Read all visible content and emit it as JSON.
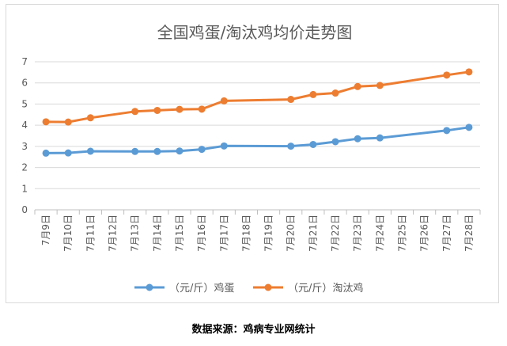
{
  "chart_data": {
    "type": "line",
    "title": "全国鸡蛋/淘汰鸡均价走势图",
    "categories": [
      "7月9日",
      "7月10日",
      "7月11日",
      "7月12日",
      "7月13日",
      "7月14日",
      "7月15日",
      "7月16日",
      "7月17日",
      "7月18日",
      "7月19日",
      "7月20日",
      "7月21日",
      "7月22日",
      "7月23日",
      "7月24日",
      "7月25日",
      "7月26日",
      "7月27日",
      "7月28日"
    ],
    "series": [
      {
        "name": "（元/斤）鸡蛋",
        "color": "#5B9BD5",
        "values": [
          2.68,
          2.69,
          2.77,
          null,
          2.76,
          2.76,
          2.78,
          2.86,
          3.02,
          null,
          null,
          3.01,
          3.09,
          3.22,
          3.36,
          3.4,
          null,
          null,
          3.75,
          3.9
        ]
      },
      {
        "name": "（元/斤）淘汰鸡",
        "color": "#ED7D31",
        "values": [
          4.16,
          4.15,
          4.35,
          null,
          4.65,
          4.7,
          4.75,
          4.76,
          5.15,
          null,
          null,
          5.22,
          5.45,
          5.52,
          5.83,
          5.88,
          null,
          null,
          6.37,
          6.52
        ]
      }
    ],
    "ylim": [
      0,
      7
    ],
    "yticks": [
      0,
      1,
      2,
      3,
      4,
      5,
      6,
      7
    ],
    "grid": true,
    "legend": "bottom"
  },
  "source_note": "数据来源：鸡病专业网统计"
}
